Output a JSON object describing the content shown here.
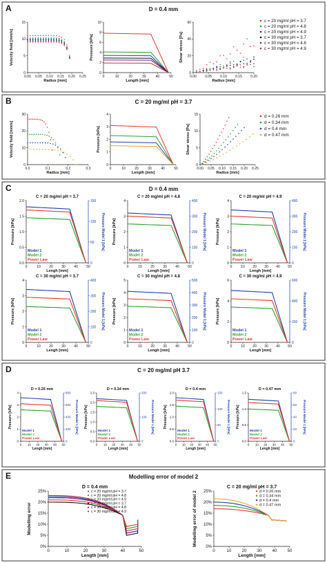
{
  "panels": {
    "A": {
      "letter": "A",
      "title": "D = 0.4 mm"
    },
    "B": {
      "letter": "B",
      "title": "C = 20 mg/ml pH = 3.7"
    },
    "C": {
      "letter": "C",
      "title": "D = 0.4 mm"
    },
    "D": {
      "letter": "D",
      "title": "C = 20 mg/ml pH 3.7"
    },
    "E": {
      "letter": "E",
      "title": "Modelling error of model 2"
    }
  },
  "legends": {
    "c_series": [
      "c = 20 mg/ml pH = 3.7",
      "c = 20 mg/ml pH = 4.8",
      "c = 20 mg/ml pH = 4.9",
      "c = 30 mg/ml pH = 3.7",
      "c = 30 mg/ml pH = 4.8",
      "c = 30 mg/ml pH = 4.9"
    ],
    "d_series": [
      "d = 0.26 mm",
      "d = 0.34 mm",
      "d = 0.4 mm",
      "d = 0.47 mm"
    ],
    "models": [
      "Model 1",
      "Model 2",
      "Power Law"
    ]
  },
  "colors": {
    "c_series": [
      "#e8392b",
      "#2e9a3a",
      "#1f3fa8",
      "#111111",
      "#7b1fa2",
      "#c0392b"
    ],
    "d_series": [
      "#e8392b",
      "#2e9a3a",
      "#1f3fa8",
      "#f0a030"
    ],
    "models": [
      "#1f3fa8",
      "#2ca02c",
      "#e8392b"
    ],
    "right_axis": "#1f3fa8"
  },
  "chart_data": [
    {
      "id": "A1",
      "type": "scatter",
      "xlabel": "Radius [mm]",
      "ylabel": "Velocity field [mm/s]",
      "xticks": [
        "0.00",
        "0.05",
        "0.10",
        "0.15",
        "0.20",
        "0.25"
      ],
      "yticks": [
        "0",
        "5",
        "10",
        "15"
      ],
      "xlim": [
        0,
        0.25
      ],
      "ylim": [
        0,
        15
      ],
      "series": [
        {
          "values": [
            11
          ]
        },
        {
          "values": [
            10.3
          ]
        },
        {
          "values": [
            10
          ]
        },
        {
          "values": [
            9.7
          ]
        },
        {
          "values": [
            9.4
          ]
        },
        {
          "values": [
            9.1
          ]
        }
      ]
    },
    {
      "id": "A2",
      "type": "line",
      "xlabel": "Length [mm]",
      "ylabel": "Pressure [kPa]",
      "xticks": [
        "0",
        "10",
        "20",
        "30",
        "40",
        "50"
      ],
      "yticks": [
        "0",
        "2",
        "4",
        "6",
        "8",
        "10"
      ],
      "xlim": [
        0,
        50
      ],
      "ylim": [
        0,
        10
      ],
      "series": [
        {
          "values": [
            7.8
          ]
        },
        {
          "values": [
            4.1
          ]
        },
        {
          "values": [
            3.4
          ]
        },
        {
          "values": [
            2.9
          ]
        },
        {
          "values": [
            2.5
          ]
        },
        {
          "values": [
            1.9
          ]
        }
      ]
    },
    {
      "id": "A3",
      "type": "scatter",
      "xlabel": "Radius [mm]",
      "ylabel": "Shear stress [Pa]",
      "xticks": [
        "0.00",
        "0.05",
        "0.10",
        "0.15",
        "0.20"
      ],
      "yticks": [
        "0",
        "20",
        "40",
        "60"
      ],
      "xlim": [
        0,
        0.2
      ],
      "ylim": [
        0,
        60
      ],
      "series": [
        {
          "values": [
            42
          ]
        },
        {
          "values": [
            20
          ]
        },
        {
          "values": [
            17
          ]
        },
        {
          "values": [
            15
          ]
        },
        {
          "values": [
            12
          ]
        },
        {
          "values": [
            10
          ]
        }
      ]
    },
    {
      "id": "B1",
      "type": "scatter",
      "xlabel": "Radius [mm]",
      "ylabel": "Velocity field [mm/s]",
      "xticks": [
        "0.0",
        "0.1",
        "0.2",
        "0.3"
      ],
      "yticks": [
        "0",
        "10",
        "20",
        "30"
      ],
      "xlim": [
        0,
        0.3
      ],
      "ylim": [
        0,
        30
      ],
      "series": [
        {
          "values": [
            27
          ]
        },
        {
          "values": [
            18
          ]
        },
        {
          "values": [
            13
          ]
        },
        {
          "values": [
            9
          ]
        }
      ]
    },
    {
      "id": "B2",
      "type": "line",
      "xlabel": "Length [mm]",
      "ylabel": "Pressure [kPa]",
      "xticks": [
        "0",
        "10",
        "20",
        "30",
        "40",
        "50"
      ],
      "yticks": [
        "0",
        "1",
        "2",
        "3",
        "4"
      ],
      "xlim": [
        0,
        50
      ],
      "ylim": [
        0,
        4
      ],
      "series": [
        {
          "values": [
            3.1
          ]
        },
        {
          "values": [
            2.3
          ]
        },
        {
          "values": [
            1.8
          ]
        },
        {
          "values": [
            1.5
          ]
        }
      ]
    },
    {
      "id": "B3",
      "type": "scatter",
      "xlabel": "Radius [mm]",
      "ylabel": "Shear stress [Pa]",
      "xticks": [
        "0.00",
        "0.05",
        "0.10",
        "0.15",
        "0.20",
        "0.25"
      ],
      "yticks": [
        "0",
        "5",
        "10",
        "15"
      ],
      "xlim": [
        0,
        0.25
      ],
      "ylim": [
        0,
        15
      ],
      "series": [
        {
          "values": [
            14
          ]
        },
        {
          "values": [
            12
          ]
        },
        {
          "values": [
            11
          ]
        },
        {
          "values": [
            9
          ]
        }
      ]
    },
    {
      "id": "C1",
      "type": "line",
      "title": "C = 20 mg/ml pH = 3.7",
      "xlabel": "Lengh [mm]",
      "ylabel": "Pressure [kPa]",
      "ylabel2": "Pressure Model 1 [kPa]",
      "xticks": [
        "0",
        "10",
        "20",
        "30",
        "40",
        "50"
      ],
      "yticks": [
        "0.0",
        "0.5",
        "1.0",
        "1.5",
        "2.0"
      ],
      "yticks2": [
        "0",
        "50",
        "100",
        "150"
      ],
      "xlim": [
        0,
        50
      ],
      "ylim": [
        0,
        2
      ],
      "ylim2": [
        0,
        150
      ],
      "series": [
        {
          "values": [
            1.8
          ]
        },
        {
          "values": [
            1.45
          ]
        },
        {
          "values": [
            1.7
          ]
        }
      ]
    },
    {
      "id": "C2",
      "type": "line",
      "title": "C = 20 mg/ml pH = 4.8",
      "xlabel": "Lengh [mm]",
      "ylabel": "Pressure [kPa]",
      "ylabel2": "Pressure Model 1 [kPa]",
      "xticks": [
        "0",
        "10",
        "20",
        "30",
        "40",
        "50"
      ],
      "yticks": [
        "0",
        "1",
        "2",
        "3",
        "4"
      ],
      "yticks2": [
        "0",
        "100",
        "200",
        "300",
        "400"
      ],
      "xlim": [
        0,
        50
      ],
      "ylim": [
        0,
        4
      ],
      "ylim2": [
        0,
        400
      ],
      "series": [
        {
          "values": [
            3.2
          ]
        },
        {
          "values": [
            2.5
          ]
        },
        {
          "values": [
            3.0
          ]
        }
      ]
    },
    {
      "id": "C3",
      "type": "line",
      "title": "C = 20 mg/ml pH = 4.9",
      "xlabel": "Lengh [mm]",
      "ylabel": "Pressure [kPa]",
      "ylabel2": "Pressure Model 1 [kPa]",
      "xticks": [
        "0",
        "10",
        "20",
        "30",
        "40",
        "50"
      ],
      "yticks": [
        "0",
        "1",
        "2",
        "3",
        "4"
      ],
      "yticks2": [
        "0",
        "100",
        "200",
        "300",
        "400"
      ],
      "xlim": [
        0,
        50
      ],
      "ylim": [
        0,
        4
      ],
      "ylim2": [
        0,
        400
      ],
      "series": [
        {
          "values": [
            3.4
          ]
        },
        {
          "values": [
            2.5
          ]
        },
        {
          "values": [
            3.0
          ]
        }
      ]
    },
    {
      "id": "C4",
      "type": "line",
      "title": "C = 30 mg/ml pH = 3.7",
      "xlabel": "Lengh [mm]",
      "ylabel": "Pressure [kPa]",
      "ylabel2": "Pressure Model 1 [kPa]",
      "xticks": [
        "0",
        "10",
        "20",
        "30",
        "40",
        "50"
      ],
      "yticks": [
        "0",
        "1",
        "2",
        "3",
        "4"
      ],
      "yticks2": [
        "0",
        "100",
        "200",
        "300",
        "400"
      ],
      "xlim": [
        0,
        50
      ],
      "ylim": [
        0,
        4
      ],
      "ylim2": [
        0,
        400
      ],
      "series": [
        {
          "values": [
            3.4
          ]
        },
        {
          "values": [
            2.3
          ]
        },
        {
          "values": [
            2.9
          ]
        }
      ]
    },
    {
      "id": "C5",
      "type": "line",
      "title": "C = 30 mg/ml pH = 4.8",
      "xlabel": "Lengh [mm]",
      "ylabel": "Pressure [kPa]",
      "ylabel2": "Pressure Model 1 [kPa]",
      "xticks": [
        "0",
        "10",
        "20",
        "30",
        "40",
        "50"
      ],
      "yticks": [
        "0",
        "1",
        "2",
        "3",
        "4",
        "5"
      ],
      "yticks2": [
        "0",
        "100",
        "200",
        "300",
        "400",
        "500"
      ],
      "xlim": [
        0,
        50
      ],
      "ylim": [
        0,
        5
      ],
      "ylim2": [
        0,
        500
      ],
      "series": [
        {
          "values": [
            4.1
          ]
        },
        {
          "values": [
            2.9
          ]
        },
        {
          "values": [
            3.5
          ]
        }
      ]
    },
    {
      "id": "C6",
      "type": "line",
      "title": "C = 30 mg/ml pH = 4.9",
      "xlabel": "Lengh [mm]",
      "ylabel": "Pressure [kPa]",
      "ylabel2": "Pressure Model 1 [kPa]",
      "xticks": [
        "0",
        "10",
        "20",
        "30",
        "40",
        "50"
      ],
      "yticks": [
        "0",
        "2",
        "4",
        "6"
      ],
      "yticks2": [
        "0",
        "200",
        "400",
        "600"
      ],
      "xlim": [
        0,
        50
      ],
      "ylim": [
        0,
        6
      ],
      "ylim2": [
        0,
        600
      ],
      "series": [
        {
          "values": [
            5.0
          ]
        },
        {
          "values": [
            3.4
          ]
        },
        {
          "values": [
            4.2
          ]
        }
      ]
    },
    {
      "id": "D1",
      "type": "line",
      "title": "D = 0.26 mm",
      "xlabel": "Lengh [mm]",
      "ylabel": "Pressure [kPa]",
      "ylabel2": "Pressure Model 1 [kPa]",
      "xticks": [
        "0",
        "10",
        "20",
        "30",
        "40",
        "50"
      ],
      "yticks": [
        "0",
        "1",
        "2",
        "3",
        "4"
      ],
      "yticks2": [
        "0",
        "200",
        "400",
        "600",
        "800"
      ],
      "xlim": [
        0,
        50
      ],
      "ylim": [
        0,
        4
      ],
      "ylim2": [
        0,
        800
      ],
      "series": [
        {
          "values": [
            3.6
          ]
        },
        {
          "values": [
            2.6
          ]
        },
        {
          "values": [
            3.1
          ]
        }
      ]
    },
    {
      "id": "D2",
      "type": "line",
      "title": "D = 0.34 mm",
      "xlabel": "Lengh [mm]",
      "ylabel": "Pressure [kPa]",
      "ylabel2": "Pressure Model 1 [kPa]",
      "xticks": [
        "0",
        "10",
        "20",
        "30",
        "40",
        "50"
      ],
      "yticks": [
        "0.0",
        "0.5",
        "1.0",
        "1.5",
        "2.0",
        "2.5"
      ],
      "yticks2": [
        "0",
        "100",
        "200"
      ],
      "xlim": [
        0,
        50
      ],
      "ylim": [
        0,
        2.5
      ],
      "ylim2": [
        0,
        250
      ],
      "series": [
        {
          "values": [
            2.2
          ]
        },
        {
          "values": [
            1.8
          ]
        },
        {
          "values": [
            2.1
          ]
        }
      ]
    },
    {
      "id": "D3",
      "type": "line",
      "title": "D = 0.4 mm",
      "xlabel": "Lengh [mm]",
      "ylabel": "Pressure [kPa]",
      "ylabel2": "Pressure Model 1 [kPa]",
      "xticks": [
        "0",
        "10",
        "20",
        "30",
        "40",
        "50"
      ],
      "yticks": [
        "0.0",
        "0.5",
        "1.0",
        "1.5",
        "2.0"
      ],
      "yticks2": [
        "0",
        "50",
        "100",
        "150"
      ],
      "xlim": [
        0,
        50
      ],
      "ylim": [
        0,
        2
      ],
      "ylim2": [
        0,
        150
      ],
      "series": [
        {
          "values": [
            1.8
          ]
        },
        {
          "values": [
            1.45
          ]
        },
        {
          "values": [
            1.7
          ]
        }
      ]
    },
    {
      "id": "D4",
      "type": "line",
      "title": "D = 0.47 mm",
      "xlabel": "Lengh [mm]",
      "ylabel": "Pressure [kPa]",
      "ylabel2": "Pressure Model 1 [kPa]",
      "xticks": [
        "0",
        "10",
        "20",
        "30",
        "40",
        "50"
      ],
      "yticks": [
        "0.0",
        "0.5",
        "1.0",
        "1.5"
      ],
      "yticks2": [
        "0",
        "20",
        "40",
        "60",
        "80"
      ],
      "xlim": [
        0,
        50
      ],
      "ylim": [
        0,
        1.5
      ],
      "ylim2": [
        0,
        80
      ],
      "series": [
        {
          "values": [
            1.3
          ]
        },
        {
          "values": [
            1.0
          ]
        },
        {
          "values": [
            1.2
          ]
        }
      ]
    },
    {
      "id": "E1",
      "type": "line",
      "title": "D = 0.4 mm",
      "xlabel": "Length [mm]",
      "ylabel": "Modelling error",
      "xticks": [
        "0",
        "10",
        "20",
        "30",
        "40",
        "50"
      ],
      "yticks": [
        "0%",
        "5%",
        "10%",
        "15%",
        "20%",
        "25%"
      ],
      "xlim": [
        0,
        50
      ],
      "ylim": [
        0,
        25
      ],
      "series": [
        {
          "values": [
            21
          ]
        },
        {
          "values": [
            22
          ]
        },
        {
          "values": [
            22.5
          ]
        },
        {
          "values": [
            20
          ]
        },
        {
          "values": [
            22
          ]
        },
        {
          "values": [
            23
          ]
        }
      ]
    },
    {
      "id": "E2",
      "type": "line",
      "title": "C = 20 mg/ml pH = 3.7",
      "xlabel": "Length [mm]",
      "ylabel": "Modelling error of model 2",
      "xticks": [
        "0",
        "10",
        "20",
        "30",
        "40",
        "50"
      ],
      "yticks": [
        "0%",
        "5%",
        "10%",
        "15%",
        "20%",
        "25%"
      ],
      "xlim": [
        0,
        50
      ],
      "ylim": [
        0,
        25
      ],
      "series": [
        {
          "values": [
            17
          ]
        },
        {
          "values": [
            18.5
          ]
        },
        {
          "values": [
            20
          ]
        },
        {
          "values": [
            21.5
          ]
        }
      ]
    }
  ]
}
